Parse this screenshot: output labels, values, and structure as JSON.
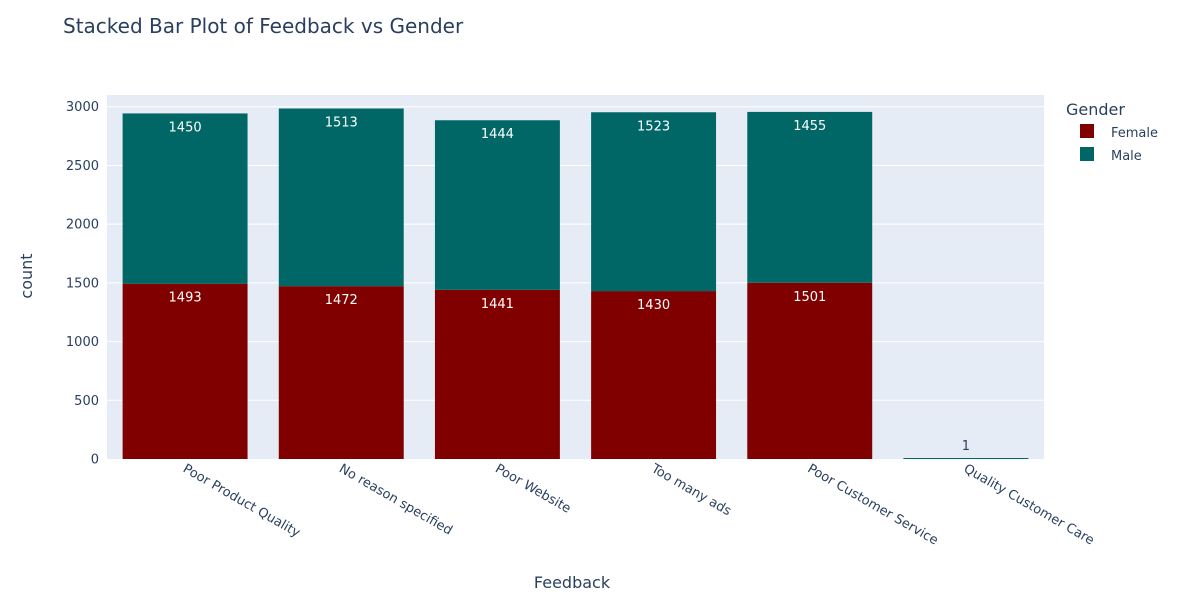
{
  "chart_data": {
    "type": "bar",
    "barmode": "stack",
    "title": "Stacked Bar Plot of Feedback vs Gender",
    "xlabel": "Feedback",
    "ylabel": "count",
    "categories": [
      "Poor Product Quality",
      "No reason specified",
      "Poor Website",
      "Too many ads",
      "Poor Customer Service",
      "Quality Customer Care"
    ],
    "series": [
      {
        "name": "Female",
        "color": "#800000",
        "values": [
          1493,
          1472,
          1441,
          1430,
          1501,
          null
        ]
      },
      {
        "name": "Male",
        "color": "#006666",
        "values": [
          1450,
          1513,
          1444,
          1523,
          1455,
          1
        ]
      }
    ],
    "ylim": [
      0,
      3100
    ],
    "yticks": [
      0,
      500,
      1000,
      1500,
      2000,
      2500,
      3000
    ],
    "grid": true,
    "legend": {
      "title": "Gender",
      "position": "top-right"
    },
    "plot_background": "#e5ecf6",
    "label_colors": {
      "inside": "#ffffff",
      "outside": "#2a3f5f"
    }
  }
}
